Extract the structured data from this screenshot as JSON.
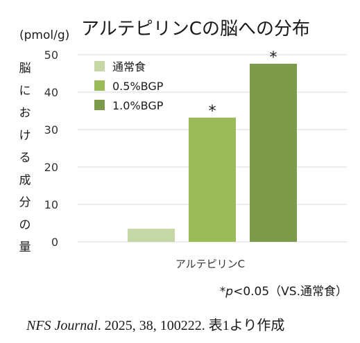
{
  "chart_data": {
    "type": "bar",
    "title": "アルテピリンCの脳への分布",
    "unit_label": "(pmol/g)",
    "ylabel_chars": [
      "脳",
      "に",
      "お",
      "け",
      "る",
      "成",
      "分",
      "の",
      "量"
    ],
    "categories": [
      "アルテピリンC"
    ],
    "ylim": [
      0,
      50
    ],
    "yticks": [
      0,
      10,
      20,
      30,
      40,
      50
    ],
    "grid": true,
    "legend_position": "top-left",
    "series": [
      {
        "name": "通常食",
        "values": [
          3.5
        ],
        "color": "#c5d7a5",
        "marker": ""
      },
      {
        "name": "0.5%BGP",
        "values": [
          33.2
        ],
        "color": "#9bbb59",
        "marker": "*"
      },
      {
        "name": "1.0%BGP",
        "values": [
          47.6
        ],
        "color": "#7c9a49",
        "marker": "*"
      }
    ]
  },
  "footnote": {
    "star": "*",
    "p": "p",
    "rest": "<0.05（VS.通常食）"
  },
  "source": {
    "journal": "NFS Journal",
    "citation": ". 2025, 38, 100222. 表1より作成"
  }
}
